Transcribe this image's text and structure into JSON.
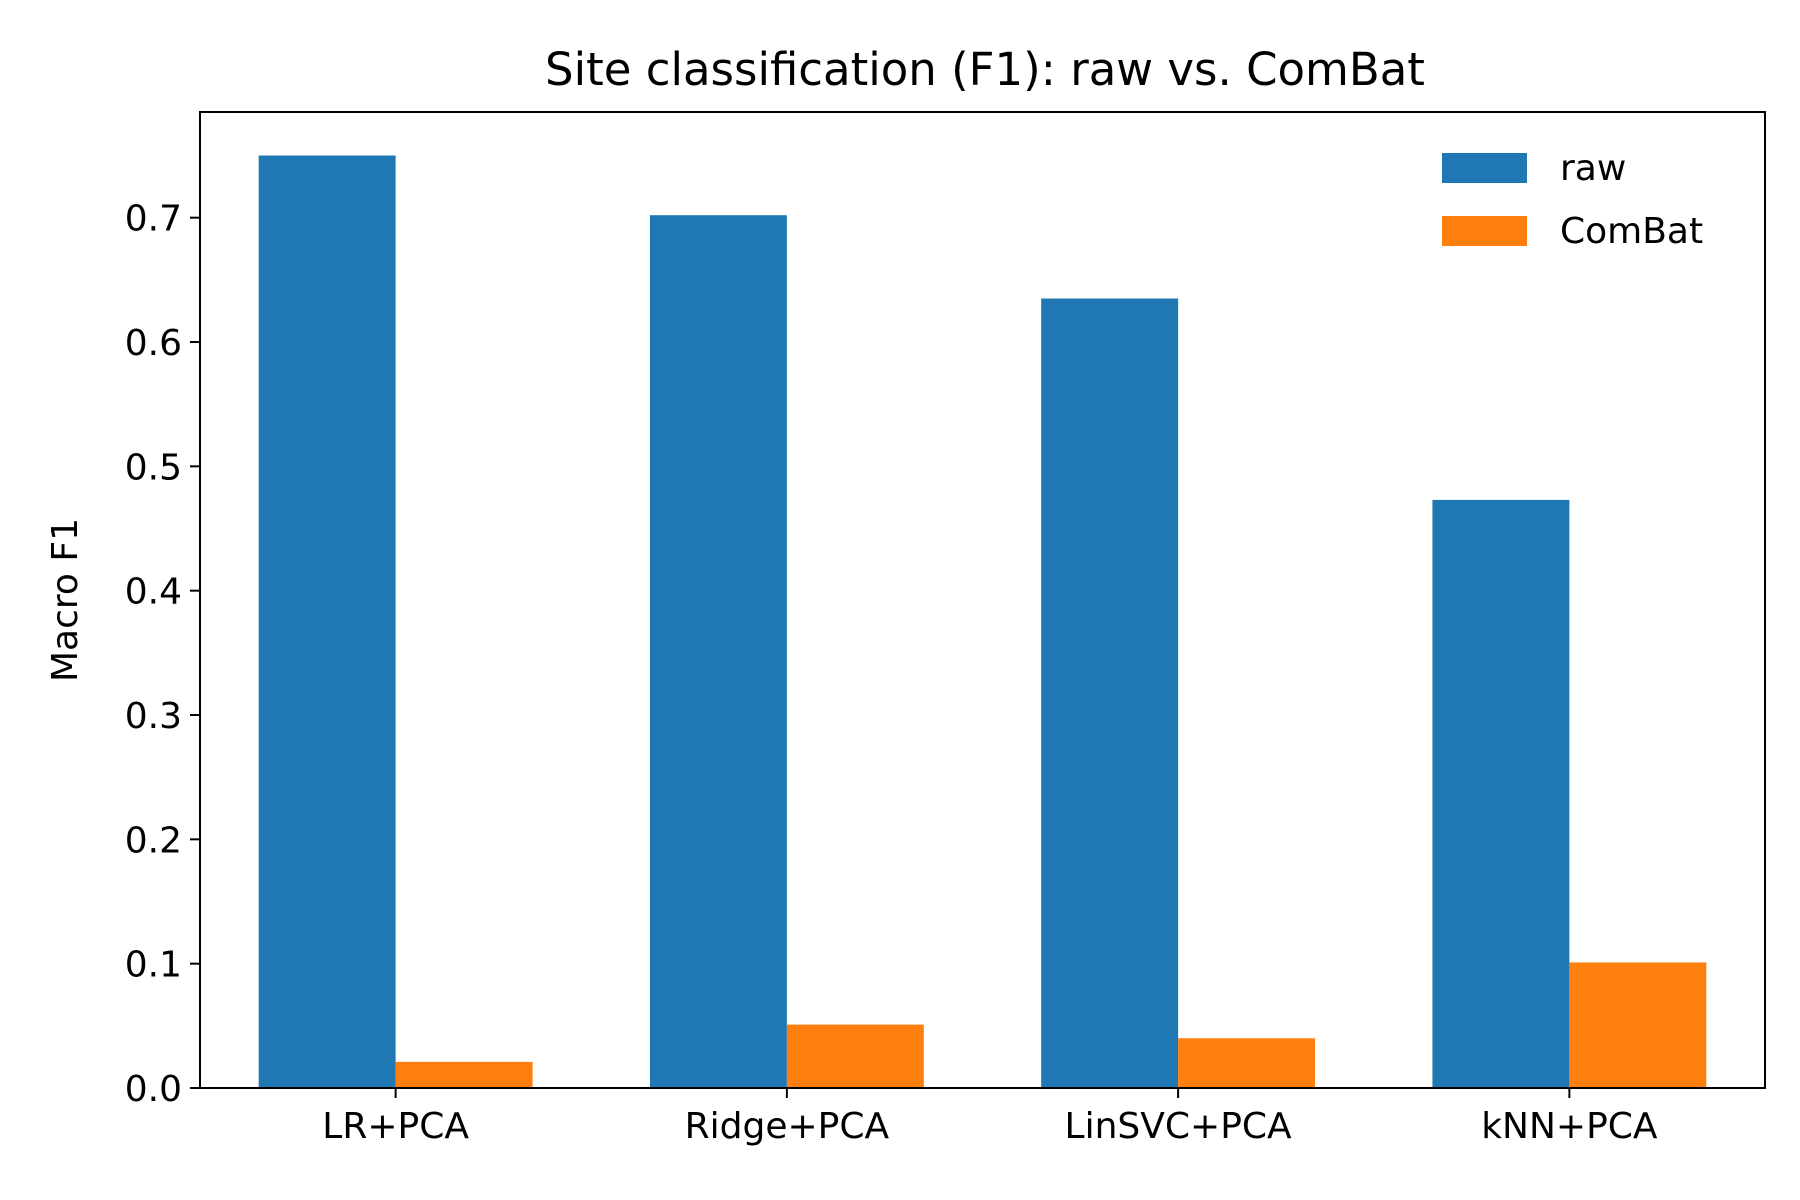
{
  "chart_data": {
    "type": "bar",
    "title": "Site classification (F1): raw vs. ComBat",
    "xlabel": "",
    "ylabel": "Macro F1",
    "categories": [
      "LR+PCA",
      "Ridge+PCA",
      "LinSVC+PCA",
      "kNN+PCA"
    ],
    "series": [
      {
        "name": "raw",
        "color": "#1f77b4",
        "values": [
          0.75,
          0.702,
          0.635,
          0.473
        ]
      },
      {
        "name": "ComBat",
        "color": "#ff7f0e",
        "values": [
          0.021,
          0.051,
          0.04,
          0.101
        ]
      }
    ],
    "ylim": [
      0,
      0.785
    ],
    "yticks": [
      "0.0",
      "0.1",
      "0.2",
      "0.3",
      "0.4",
      "0.5",
      "0.6",
      "0.7"
    ],
    "grid": false,
    "legend": "top-right"
  }
}
